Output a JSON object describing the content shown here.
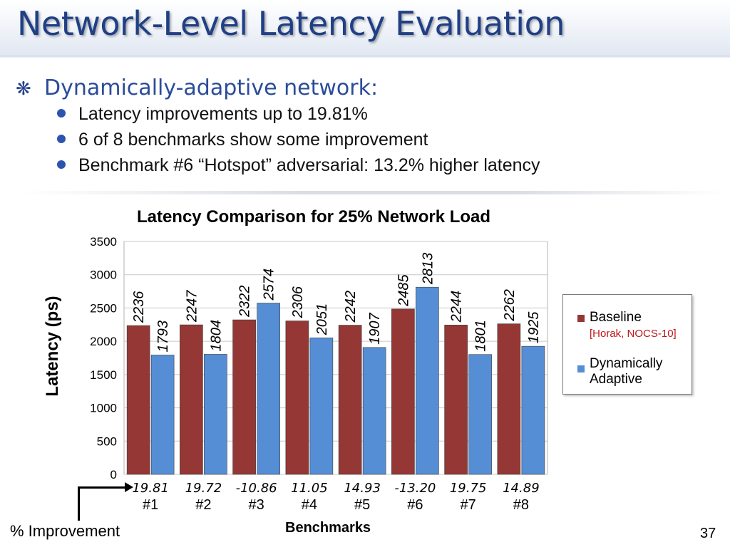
{
  "slide": {
    "title": "Network-Level Latency Evaluation",
    "bullet_glyph": "❋",
    "bullet": "Dynamically-adaptive network:",
    "sub_bullets": [
      "Latency improvements up to 19.81%",
      "6 of 8 benchmarks show some improvement",
      "Benchmark #6 “Hotspot” adversarial: 13.2% higher latency"
    ],
    "improvement_label": "% Improvement",
    "page_number": "37"
  },
  "colors": {
    "title": "#1f3f86",
    "baseline": "#953735",
    "adaptive": "#558ed5",
    "note": "#c0151b"
  },
  "chart_data": {
    "type": "bar",
    "title": "Latency Comparison for 25% Network Load",
    "ylabel": "Latency (ps)",
    "xlabel": "Benchmarks",
    "ylim": [
      0,
      3500
    ],
    "yticks": [
      0,
      500,
      1000,
      1500,
      2000,
      2500,
      3000,
      3500
    ],
    "grid": true,
    "legend_position": "right",
    "categories": [
      "#1",
      "#2",
      "#3",
      "#4",
      "#5",
      "#6",
      "#7",
      "#8"
    ],
    "series": [
      {
        "name": "Baseline",
        "note": "[Horak, NOCS-10]",
        "values": [
          2236,
          2247,
          2322,
          2306,
          2242,
          2485,
          2244,
          2262
        ]
      },
      {
        "name": "Dynamically Adaptive",
        "values": [
          1793,
          1804,
          2574,
          2051,
          1907,
          2813,
          1801,
          1925
        ]
      }
    ],
    "improvement_percent": [
      "19.81",
      "19.72",
      "-10.86",
      "11.05",
      "14.93",
      "-13.20",
      "19.75",
      "14.89"
    ]
  }
}
